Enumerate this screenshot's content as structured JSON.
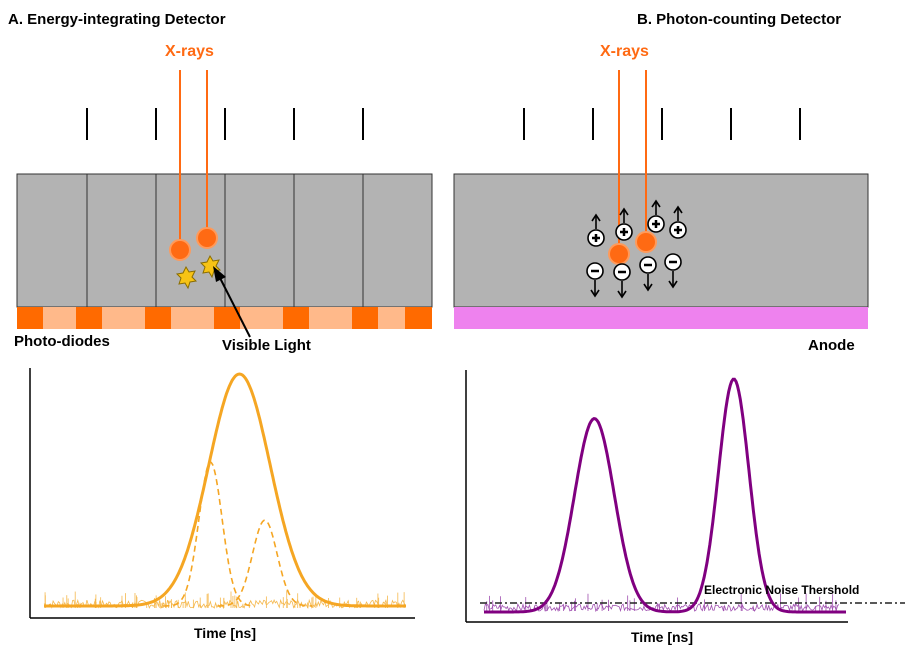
{
  "colors": {
    "xray": "#ff6a13",
    "detector_gray": "#b3b3b3",
    "photodiode_dark": "#ff6a00",
    "photodiode_light": "#ffb98a",
    "anode": "#ee82ee",
    "star": "#f7c315",
    "signal_orange": "#f5a623",
    "signal_purple": "#800080",
    "noise_orange": "#f5b84d",
    "noise_purple": "#a050b0"
  },
  "panel_a": {
    "title": "A. Energy-integrating Detector",
    "xray_label": "X-rays",
    "photodiode_label": "Photo-diodes",
    "visible_light_label": "Visible Light",
    "xaxis_label": "Time [ns]"
  },
  "panel_b": {
    "title": "B. Photon-counting Detector",
    "xray_label": "X-rays",
    "anode_label": "Anode",
    "threshold_label": "Electronic Noise Thershold",
    "xaxis_label": "Time [ns]",
    "positive_symbol": "+",
    "negative_symbol": "−"
  },
  "chart_data": [
    {
      "type": "line",
      "series": [
        {
          "values": [
            [
              0.0,
              0.0
            ],
            [
              0.3,
              0.0
            ],
            [
              0.45,
              0.2
            ],
            [
              0.54,
              1.0
            ],
            [
              0.63,
              0.2
            ],
            [
              0.8,
              0.0
            ],
            [
              1.0,
              0.0
            ]
          ]
        },
        {
          "values": [
            [
              0.35,
              0.0
            ],
            [
              0.46,
              0.62
            ],
            [
              0.55,
              0.0
            ]
          ]
        },
        {
          "values": [
            [
              0.5,
              0.0
            ],
            [
              0.61,
              0.37
            ],
            [
              0.72,
              0.0
            ]
          ]
        }
      ]
    },
    {
      "type": "line",
      "series": [
        {
          "values": [
            [
              0.0,
              0.0
            ],
            [
              0.14,
              0.0
            ],
            [
              0.28,
              0.83
            ],
            [
              0.43,
              0.0
            ],
            [
              0.58,
              0.0
            ],
            [
              0.69,
              1.0
            ],
            [
              0.82,
              0.0
            ],
            [
              1.0,
              0.0
            ]
          ]
        }
      ]
    }
  ]
}
